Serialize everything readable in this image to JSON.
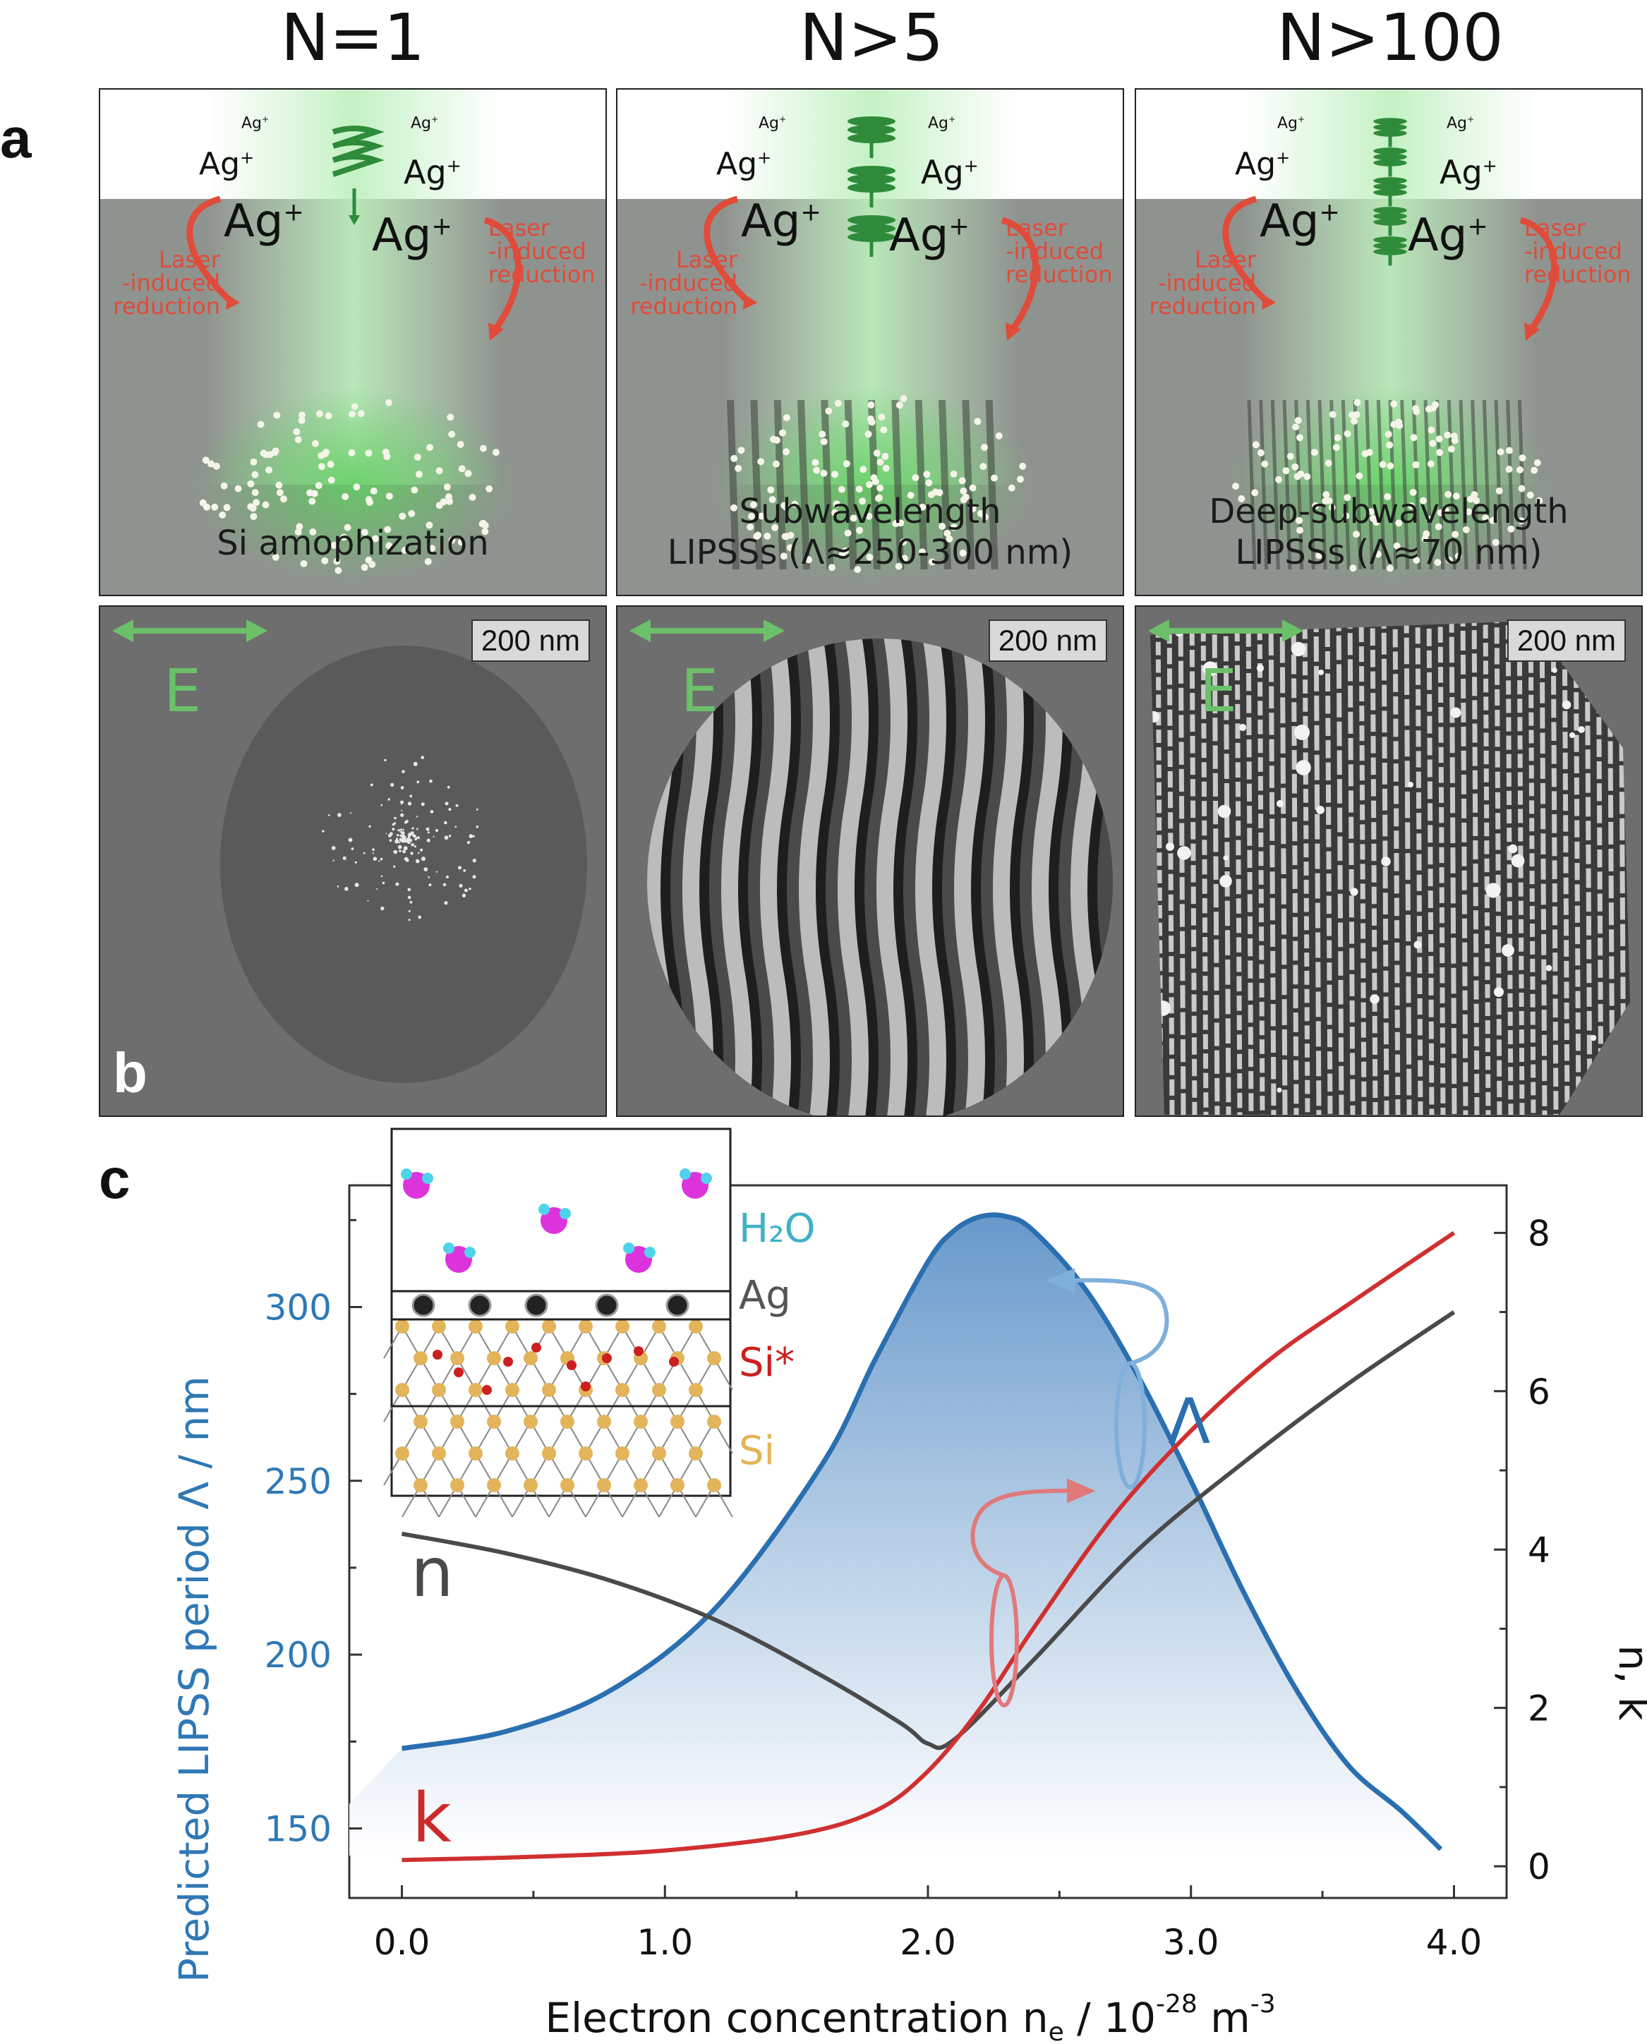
{
  "column_headers": [
    "N=1",
    "N>5",
    "N>100"
  ],
  "panel_labels": {
    "a": "a",
    "b": "b",
    "c": "c"
  },
  "panel_a": {
    "ag_label": "Ag",
    "ag_charge": "+",
    "reduction_left": [
      "Laser",
      "-induced",
      "reduction"
    ],
    "reduction_right": [
      "Laser",
      "-induced",
      "reduction"
    ],
    "captions": [
      [
        "Si amophization"
      ],
      [
        "Subwavelength",
        "LIPSSs (Λ≈250-300 nm)"
      ],
      [
        "Deep-subwavelength",
        "LIPSSs (Λ≈70 nm)"
      ]
    ],
    "colors": {
      "laser_green": "#3aa843",
      "reduction_red": "#e04b3a",
      "substrate": "#8f938f"
    }
  },
  "panel_b": {
    "scale_bar": "200 nm",
    "field_label": "E",
    "colors": {
      "field_green": "#6cc06a"
    }
  },
  "chart_data": {
    "type": "line",
    "xlabel": "Electron concentration n",
    "xlabel_sub": "e",
    "xlabel_unit": " / 10",
    "xlabel_exp": "-28",
    "xlabel_unit2": " m",
    "xlabel_exp2": "-3",
    "ylabel_left": "Predicted LIPSS period Λ / nm",
    "ylabel_right": "n, k",
    "xlim": [
      -0.2,
      4.2
    ],
    "ylim_left": [
      130,
      335
    ],
    "ylim_right": [
      -0.4,
      8.6
    ],
    "x_ticks": [
      "0.0",
      "1.0",
      "2.0",
      "3.0",
      "4.0"
    ],
    "x_tick_values": [
      0,
      1,
      2,
      3,
      4
    ],
    "y_left_ticks": [
      "150",
      "200",
      "250",
      "300"
    ],
    "y_left_tick_values": [
      150,
      200,
      250,
      300
    ],
    "y_right_ticks": [
      "0",
      "2",
      "4",
      "6",
      "8"
    ],
    "y_right_tick_values": [
      0,
      2,
      4,
      6,
      8
    ],
    "series": [
      {
        "name": "Λ",
        "axis": "left",
        "color": "#2a6fb0",
        "x": [
          0.0,
          0.4,
          0.8,
          1.2,
          1.6,
          1.8,
          2.0,
          2.1,
          2.2,
          2.3,
          2.4,
          2.6,
          2.8,
          3.0,
          3.2,
          3.4,
          3.6,
          3.8,
          3.95
        ],
        "y": [
          173,
          178,
          190,
          214,
          255,
          285,
          313,
          322,
          326,
          326,
          322,
          305,
          280,
          250,
          218,
          190,
          168,
          155,
          144
        ]
      },
      {
        "name": "n",
        "axis": "right",
        "color": "#4a4a4a",
        "x": [
          0.0,
          0.4,
          0.8,
          1.2,
          1.6,
          1.9,
          2.0,
          2.1,
          2.4,
          2.8,
          3.2,
          3.6,
          4.0
        ],
        "y": [
          4.2,
          3.95,
          3.6,
          3.1,
          2.4,
          1.8,
          1.55,
          1.6,
          2.6,
          4.0,
          5.1,
          6.1,
          7.0
        ]
      },
      {
        "name": "k",
        "axis": "right",
        "color": "#d03030",
        "x": [
          0.0,
          0.5,
          1.0,
          1.5,
          1.8,
          2.0,
          2.2,
          2.4,
          2.7,
          3.0,
          3.3,
          3.6,
          4.0
        ],
        "y": [
          0.08,
          0.12,
          0.2,
          0.4,
          0.7,
          1.2,
          2.0,
          3.0,
          4.4,
          5.5,
          6.4,
          7.1,
          8.0
        ]
      }
    ],
    "curve_labels": {
      "lambda": "Λ",
      "n": "n",
      "k": "k"
    }
  },
  "inset": {
    "labels": {
      "h2o": "H₂O",
      "ag": "Ag",
      "si_star": "Si*",
      "si": "Si"
    },
    "colors": {
      "h2o": "#3fb1c6",
      "ag": "#555555",
      "si_star": "#cc1f1f",
      "si": "#e3b45a",
      "oxygen": "#dd33dd",
      "hydrogen": "#4fd3ea"
    }
  }
}
